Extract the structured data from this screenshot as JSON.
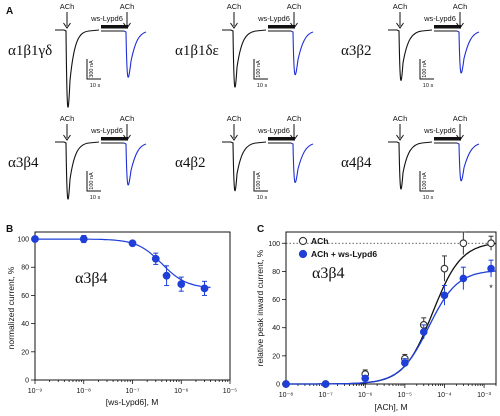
{
  "panel_labels": {
    "A": "A",
    "B": "B",
    "C": "C"
  },
  "panel_a": {
    "arrow_labels": {
      "ach": "ACh",
      "ws": "ws-Lypd6"
    },
    "cells": [
      {
        "receptor": "α1β1γδ",
        "scale_current": "300 nA",
        "scale_time": "10 s"
      },
      {
        "receptor": "α1β1δε",
        "scale_current": "100 nA",
        "scale_time": "10 s"
      },
      {
        "receptor": "α3β2",
        "scale_current": "100 nA",
        "scale_time": "10 s"
      },
      {
        "receptor": "α3β4",
        "scale_current": "100 nA",
        "scale_time": "10 s"
      },
      {
        "receptor": "α4β2",
        "scale_current": "100 nA",
        "scale_time": "10 s"
      },
      {
        "receptor": "α4β4",
        "scale_current": "100 nA",
        "scale_time": "10 s"
      }
    ],
    "colors": {
      "control": "#111111",
      "treated": "#1f2fd6"
    }
  },
  "chart_data": [
    {
      "type": "scatter",
      "panel": "B",
      "annotation": "α3β4",
      "xlabel": "[ws-Lypd6], M",
      "ylabel": "normalized current, %",
      "xscale": "log",
      "xlim": [
        1e-09,
        1e-05
      ],
      "ylim": [
        0,
        105
      ],
      "x_tick_labels": [
        "10⁻⁹",
        "10⁻⁸",
        "10⁻⁷",
        "10⁻⁶",
        "10⁻⁵"
      ],
      "y_tick_labels": [
        "0",
        "20",
        "40",
        "60",
        "80",
        "100"
      ],
      "series": [
        {
          "color": "#1f3fd8",
          "x": [
            1e-09,
            1e-08,
            1e-07,
            3e-07,
            5e-07,
            1e-06,
            3e-06
          ],
          "y": [
            100,
            100,
            97,
            86,
            74,
            68,
            65
          ],
          "err": [
            1.5,
            2.5,
            1.5,
            4,
            7,
            5,
            5
          ]
        }
      ],
      "fit": {
        "top": 100,
        "bottom": 65,
        "ic50": 4e-07,
        "hill": 1.7
      }
    },
    {
      "type": "scatter",
      "panel": "C",
      "annotation": "α3β4",
      "xlabel": "[ACh], M",
      "ylabel": "relative peak inward current, %",
      "xscale": "log",
      "xlim": [
        1e-08,
        0.002
      ],
      "ylim": [
        0,
        108
      ],
      "x_tick_labels": [
        "10⁻⁸",
        "10⁻⁷",
        "10⁻⁶",
        "10⁻⁵",
        "10⁻⁴",
        "10⁻³"
      ],
      "y_tick_labels": [
        "0",
        "20",
        "40",
        "60",
        "80",
        "100"
      ],
      "reference_line": 100,
      "legend_position": "top-left",
      "series": [
        {
          "name": "ACh",
          "marker": "open-circle",
          "color": "#333333",
          "x": [
            1e-08,
            1e-07,
            1e-06,
            1e-05,
            3e-05,
            0.0001,
            0.0003,
            0.0015
          ],
          "y": [
            0,
            0,
            7,
            18,
            42,
            82,
            100,
            100
          ],
          "err": [
            0.5,
            0.5,
            3,
            3,
            5,
            9,
            8,
            5
          ]
        },
        {
          "name": "ACh + ws-Lypd6",
          "marker": "filled-circle",
          "color": "#1f3fd8",
          "x": [
            1e-08,
            1e-07,
            1e-06,
            1e-05,
            3e-05,
            0.0001,
            0.0003,
            0.0015
          ],
          "y": [
            0,
            0,
            4,
            15,
            37,
            63,
            75,
            82
          ],
          "err": [
            0.5,
            0.5,
            2,
            3,
            5,
            7,
            8,
            6
          ]
        }
      ],
      "fits": [
        {
          "top": 101,
          "ec50": 5e-05,
          "hill": 1.2
        },
        {
          "top": 81,
          "ec50": 4e-05,
          "hill": 1.2
        }
      ]
    }
  ]
}
